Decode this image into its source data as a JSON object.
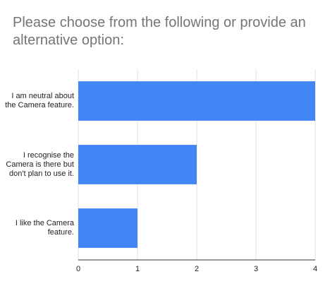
{
  "chart_data": {
    "type": "bar",
    "orientation": "horizontal",
    "title": "Please choose from the following or provide an alternative option:",
    "categories": [
      "I am neutral about the Camera feature.",
      "I recognise the Camera is there but don't plan to use it.",
      "I like the Camera feature."
    ],
    "values": [
      4,
      2,
      1
    ],
    "xlim": [
      0,
      4
    ],
    "xticks": [
      "0",
      "1",
      "2",
      "3",
      "4"
    ],
    "grid": true,
    "legend": "none",
    "bar_color": "#4285f4"
  }
}
